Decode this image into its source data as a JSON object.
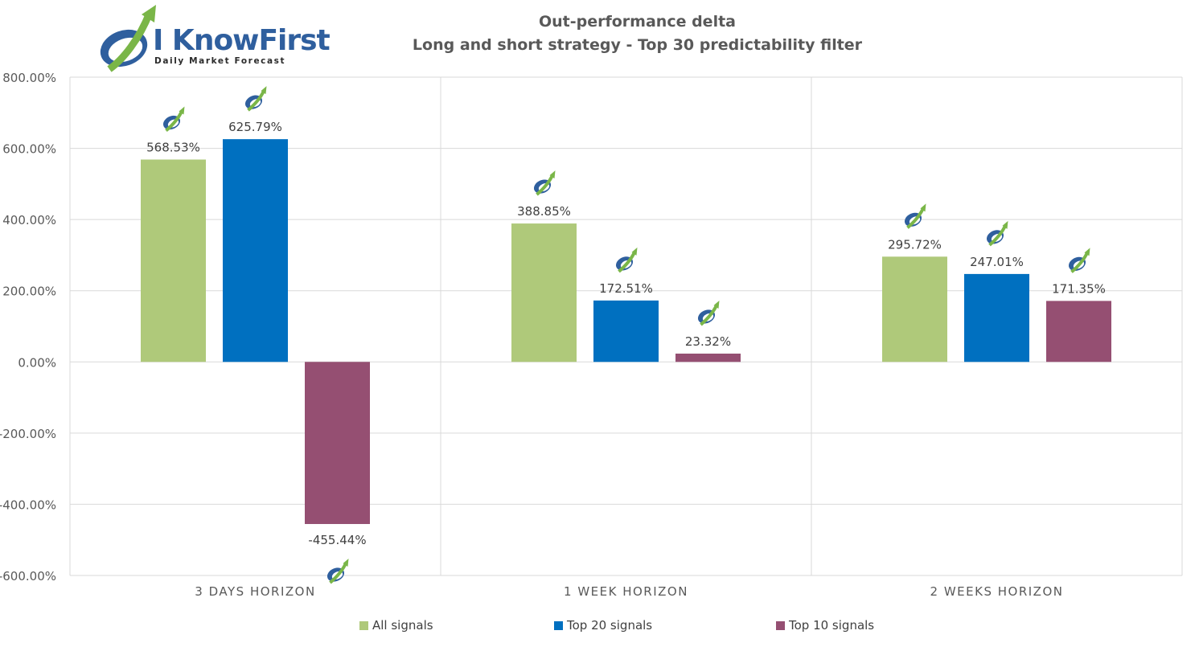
{
  "logo": {
    "name": "I KnowFirst",
    "tagline": "Daily Market Forecast"
  },
  "chart_data": {
    "type": "bar",
    "title": "Out-performance delta",
    "subtitle": "Long and short strategy - Top 30 predictability filter",
    "categories": [
      "3 DAYS HORIZON",
      "1 WEEK HORIZON",
      "2 WEEKS HORIZON"
    ],
    "series": [
      {
        "name": "All signals",
        "color": "#afc97a",
        "values": [
          568.53,
          388.85,
          295.72
        ],
        "labels": [
          "568.53%",
          "388.85%",
          "295.72%"
        ]
      },
      {
        "name": "Top 20 signals",
        "color": "#0070c0",
        "values": [
          625.79,
          172.51,
          247.01
        ],
        "labels": [
          "625.79%",
          "172.51%",
          "247.01%"
        ]
      },
      {
        "name": "Top 10 signals",
        "color": "#954f72",
        "values": [
          -455.44,
          23.32,
          171.35
        ],
        "labels": [
          "-455.44%",
          "23.32%",
          "171.35%"
        ]
      }
    ],
    "ylim": [
      -600,
      800
    ],
    "yticks": [
      800,
      600,
      400,
      200,
      0,
      -200,
      -400,
      -600
    ],
    "ytick_labels": [
      "800.00%",
      "600.00%",
      "400.00%",
      "200.00%",
      "0.00%",
      "-200.00%",
      "-400.00%",
      "-600.00%"
    ],
    "xlabel": "",
    "ylabel": "",
    "grid": true,
    "legend_position": "bottom",
    "label_icon": "iknowfirst-logo-icon"
  }
}
